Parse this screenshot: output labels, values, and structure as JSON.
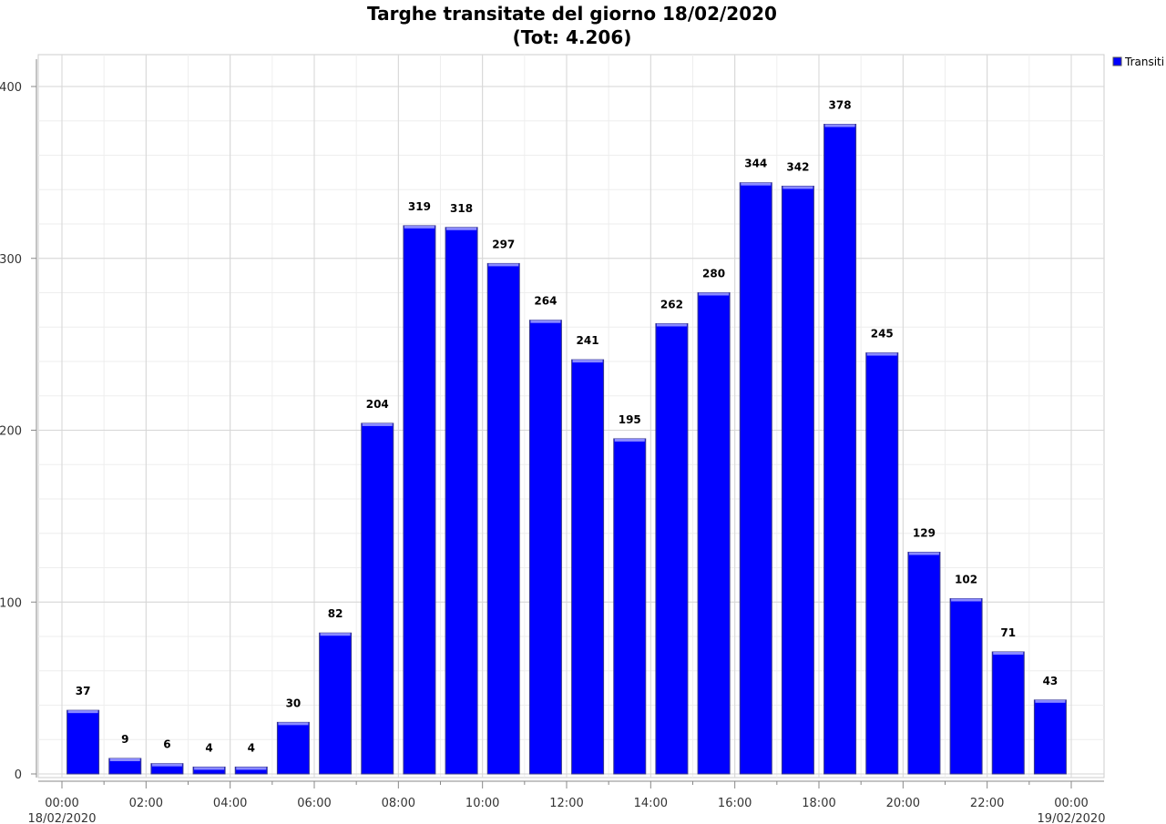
{
  "chart_data": {
    "type": "bar",
    "title": "Targhe transitate del giorno 18/02/2020",
    "subtitle": "(Tot: 4.206)",
    "xlabel": "",
    "ylabel": "",
    "ylim": [
      0,
      400
    ],
    "yticks": [
      0,
      100,
      200,
      300,
      400
    ],
    "xticks": [
      "00:00",
      "02:00",
      "04:00",
      "06:00",
      "08:00",
      "10:00",
      "12:00",
      "14:00",
      "16:00",
      "18:00",
      "20:00",
      "22:00",
      "00:00"
    ],
    "x_start_date": "18/02/2020",
    "x_end_date": "19/02/2020",
    "grid": true,
    "legend_position": "top-right",
    "series": [
      {
        "name": "Transiti",
        "color": "#0000ff",
        "values": [
          37,
          9,
          6,
          4,
          4,
          30,
          82,
          204,
          319,
          318,
          297,
          264,
          241,
          195,
          262,
          280,
          344,
          342,
          378,
          245,
          129,
          102,
          71,
          43
        ]
      }
    ]
  }
}
